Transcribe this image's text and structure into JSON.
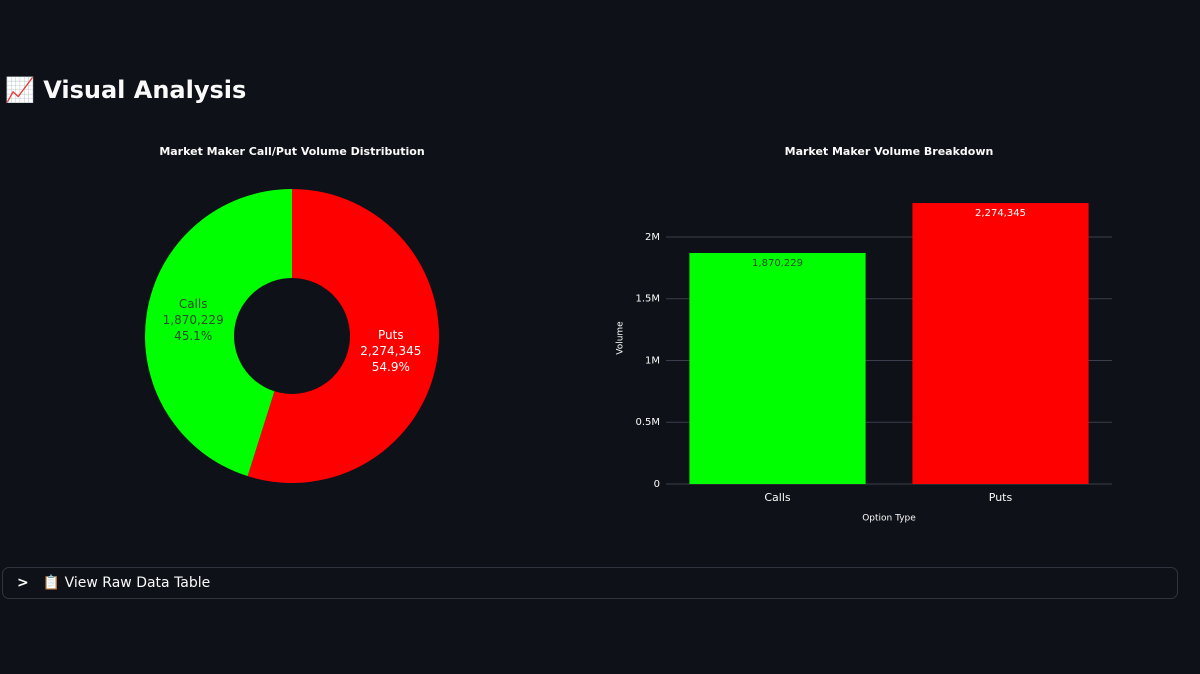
{
  "header": {
    "title": "📈 Visual Analysis"
  },
  "chart_data": [
    {
      "type": "pie",
      "title": "Market Maker Call/Put Volume Distribution",
      "categories": [
        "Calls",
        "Puts"
      ],
      "values": [
        1870229,
        2274345
      ],
      "value_labels": [
        "1,870,229",
        "2,274,345"
      ],
      "percent_labels": [
        "45.1%",
        "54.9%"
      ],
      "colors": [
        "#00ff00",
        "#ff0000"
      ]
    },
    {
      "type": "bar",
      "title": "Market Maker Volume Breakdown",
      "categories": [
        "Calls",
        "Puts"
      ],
      "values": [
        1870229,
        2274345
      ],
      "value_labels": [
        "1,870,229",
        "2,274,345"
      ],
      "colors": [
        "#00ff00",
        "#ff0000"
      ],
      "xlabel": "Option Type",
      "ylabel": "Volume",
      "ylim": [
        0,
        2388062
      ],
      "yticks": [
        0,
        {
          "value": 500000,
          "label": "0.5M"
        },
        {
          "value": 1000000,
          "label": "1M"
        },
        {
          "value": 1500000,
          "label": "1.5M"
        },
        {
          "value": 2000000,
          "label": "2M"
        }
      ],
      "grid": true
    }
  ],
  "expander": {
    "label": "📋 View Raw Data Table"
  }
}
